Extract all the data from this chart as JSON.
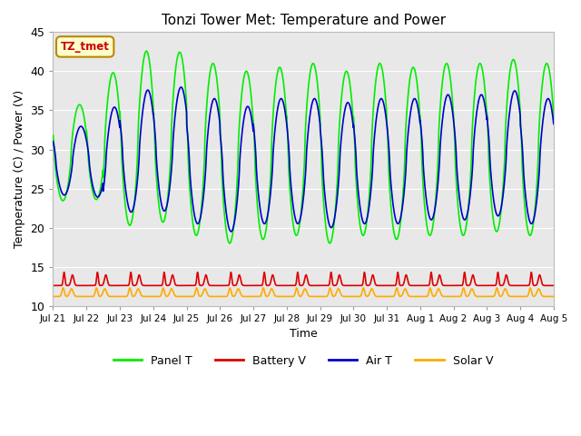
{
  "title": "Tonzi Tower Met: Temperature and Power",
  "xlabel": "Time",
  "ylabel": "Temperature (C) / Power (V)",
  "ylim": [
    10,
    45
  ],
  "xtick_labels": [
    "Jul 21",
    "Jul 22",
    "Jul 23",
    "Jul 24",
    "Jul 25",
    "Jul 26",
    "Jul 27",
    "Jul 28",
    "Jul 29",
    "Jul 30",
    "Jul 31",
    "Aug 1",
    "Aug 2",
    "Aug 3",
    "Aug 4",
    "Aug 5"
  ],
  "annotation_text": "TZ_tmet",
  "annotation_facecolor": "#ffffcc",
  "annotation_edgecolor": "#bb8800",
  "annotation_textcolor": "#cc0000",
  "bg_color": "#e8e8e8",
  "panel_t_color": "#00ee00",
  "battery_v_color": "#dd0000",
  "air_t_color": "#0000cc",
  "solar_v_color": "#ffaa00",
  "grid_color": "#ffffff",
  "legend_labels": [
    "Panel T",
    "Battery V",
    "Air T",
    "Solar V"
  ]
}
